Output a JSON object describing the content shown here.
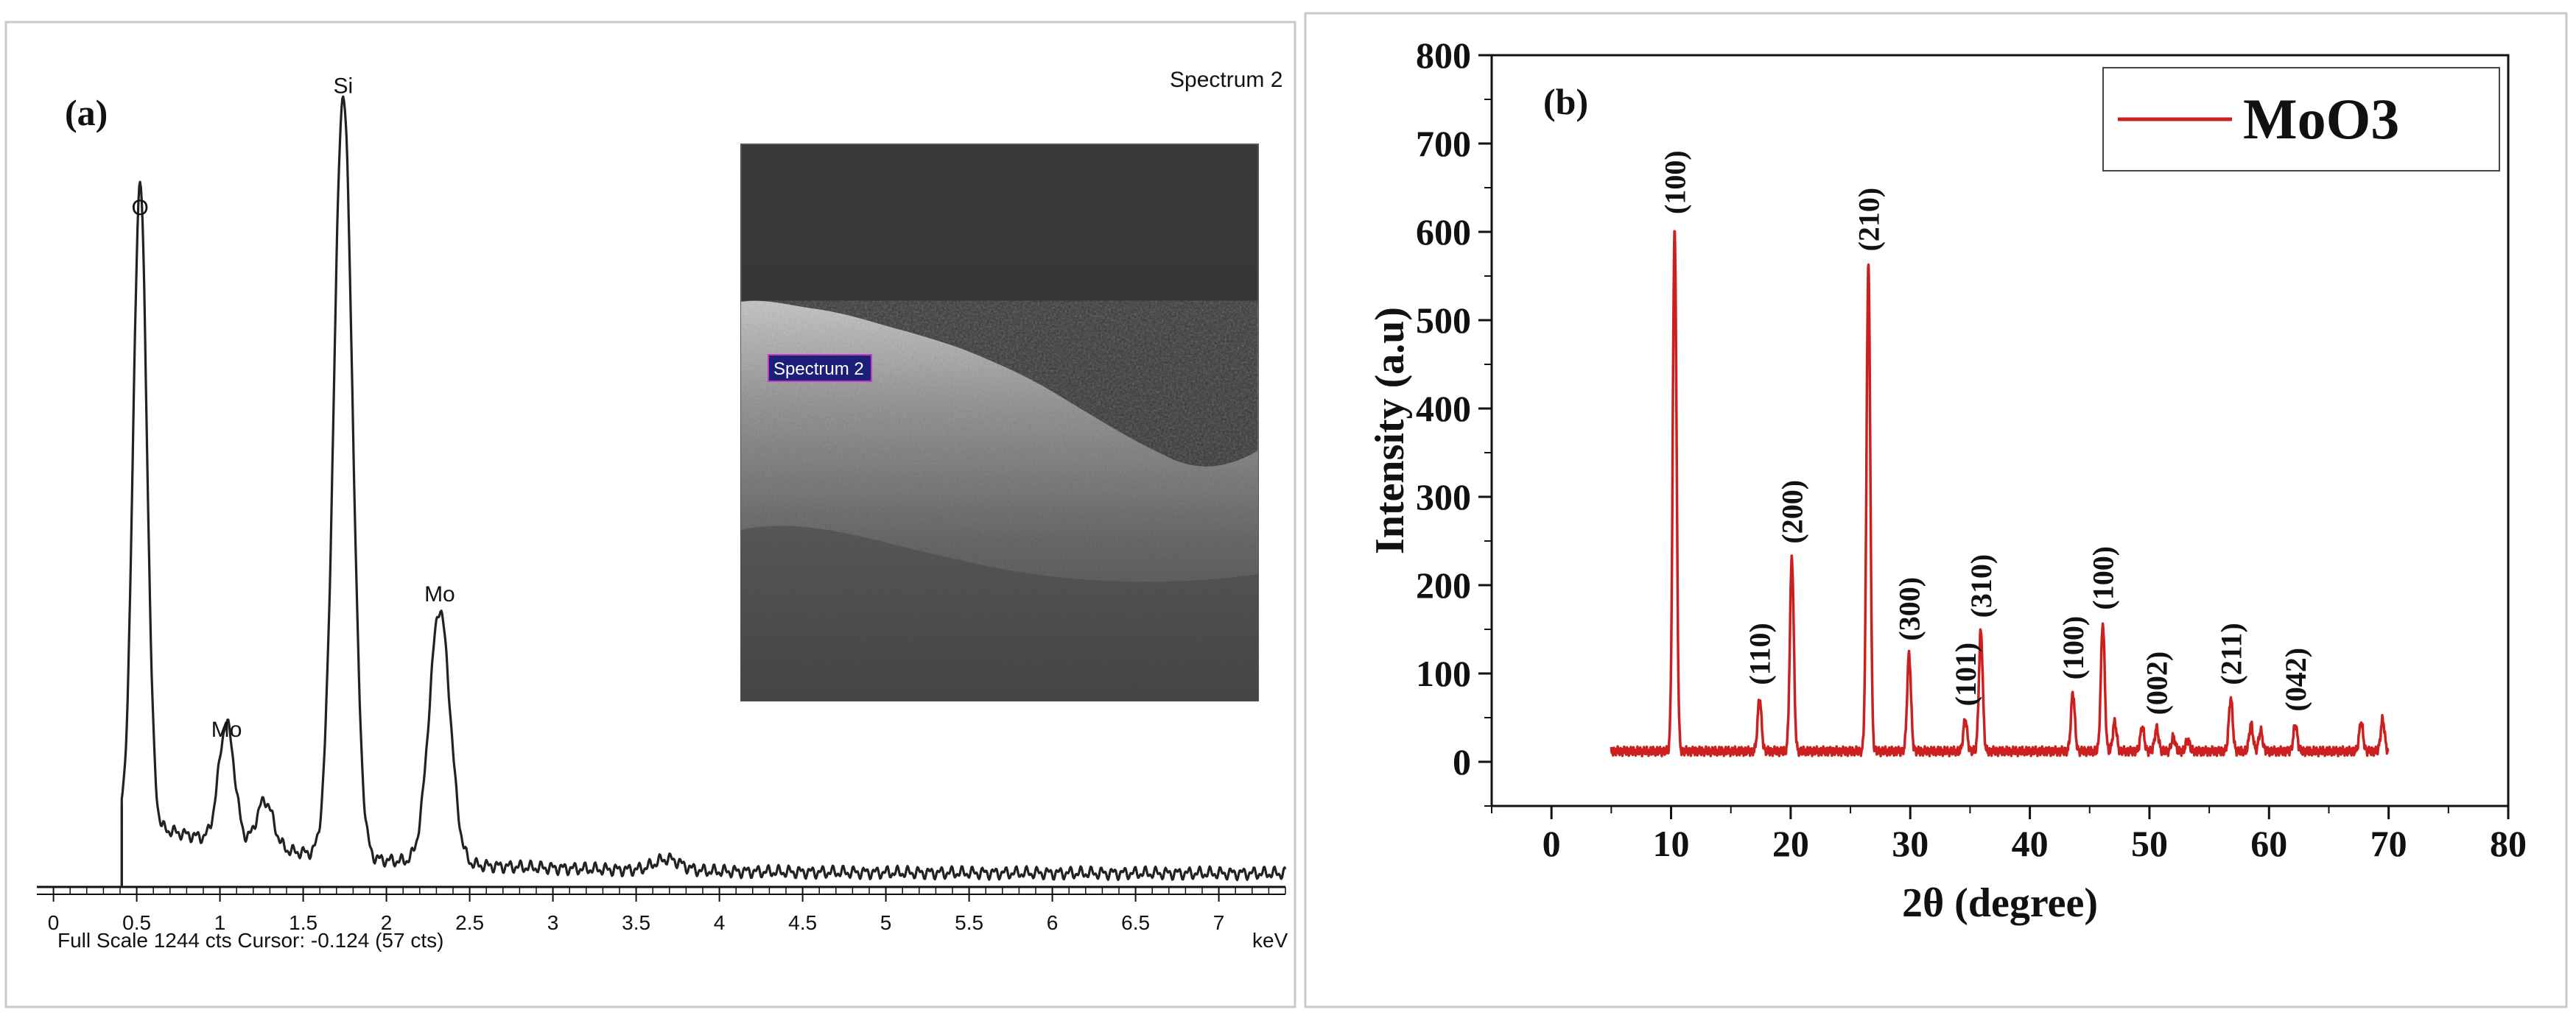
{
  "panels": {
    "a": {
      "label": "(a)",
      "spectrum_title": "Spectrum 2",
      "inset_label": "Spectrum 2",
      "footer_left": "Full Scale 1244 cts Cursor: -0.124  (57 cts)",
      "footer_right": "keV"
    },
    "b": {
      "label": "(b)"
    }
  },
  "chart_data": [
    {
      "id": "eds",
      "type": "line",
      "title": "Spectrum 2",
      "xlabel": "keV",
      "ylabel": "",
      "xlim": [
        -0.1,
        7.4
      ],
      "ylim": [
        0,
        1244
      ],
      "x_ticks": [
        0,
        0.5,
        1,
        1.5,
        2,
        2.5,
        3,
        3.5,
        4,
        4.5,
        5,
        5.5,
        6,
        6.5,
        7
      ],
      "x_tick_labels": [
        "0",
        "0.5",
        "1",
        "1.5",
        "2",
        "2.5",
        "3",
        "3.5",
        "4",
        "4.5",
        "5",
        "5.5",
        "6",
        "6.5",
        "7"
      ],
      "grid": false,
      "legend": "none",
      "line_color": "#222222",
      "baseline_start_kev": 0.41,
      "peaks": [
        {
          "element": "O",
          "energy": 0.52,
          "counts": 970
        },
        {
          "element": "Mo",
          "energy": 1.04,
          "counts": 200
        },
        {
          "element": "Si",
          "energy": 1.74,
          "counts": 1150
        },
        {
          "element": "Mo",
          "energy": 2.32,
          "counts": 400
        }
      ],
      "minor_peaks": [
        {
          "energy": 1.27,
          "counts": 95
        },
        {
          "energy": 3.69,
          "counts": 42
        }
      ]
    },
    {
      "id": "xrd",
      "type": "line",
      "title": "",
      "xlabel": "2θ (degree)",
      "ylabel": "Intensity (a.u)",
      "xlim": [
        -5,
        80
      ],
      "ylim": [
        -50,
        800
      ],
      "x_ticks": [
        0,
        10,
        20,
        30,
        40,
        50,
        60,
        70,
        80
      ],
      "y_ticks": [
        0,
        100,
        200,
        300,
        400,
        500,
        600,
        700,
        800
      ],
      "grid": false,
      "legend": "top-right",
      "series": [
        {
          "name": "MoO3",
          "color": "#cc1f1f"
        }
      ],
      "x_range_data": [
        5,
        70
      ],
      "baseline": 12,
      "peaks": [
        {
          "x": 10.3,
          "y": 605,
          "label": "(100)"
        },
        {
          "x": 17.4,
          "y": 72,
          "label": "(110)"
        },
        {
          "x": 20.1,
          "y": 232,
          "label": "(200)"
        },
        {
          "x": 26.5,
          "y": 563,
          "label": "(210)"
        },
        {
          "x": 29.9,
          "y": 122,
          "label": "(300)"
        },
        {
          "x": 34.6,
          "y": 48,
          "label": "(101)"
        },
        {
          "x": 35.9,
          "y": 148,
          "label": "(310)"
        },
        {
          "x": 43.6,
          "y": 78,
          "label": "(100)"
        },
        {
          "x": 46.1,
          "y": 157,
          "label": "(100)"
        },
        {
          "x": 47.1,
          "y": 45,
          "label": ""
        },
        {
          "x": 49.4,
          "y": 40,
          "label": ""
        },
        {
          "x": 50.6,
          "y": 38,
          "label": "(002)"
        },
        {
          "x": 52.0,
          "y": 28,
          "label": ""
        },
        {
          "x": 53.2,
          "y": 25,
          "label": ""
        },
        {
          "x": 56.8,
          "y": 72,
          "label": "(211)"
        },
        {
          "x": 58.5,
          "y": 42,
          "label": ""
        },
        {
          "x": 59.3,
          "y": 35,
          "label": ""
        },
        {
          "x": 62.2,
          "y": 42,
          "label": "(042)"
        },
        {
          "x": 67.7,
          "y": 45,
          "label": ""
        },
        {
          "x": 69.5,
          "y": 48,
          "label": ""
        }
      ]
    }
  ]
}
